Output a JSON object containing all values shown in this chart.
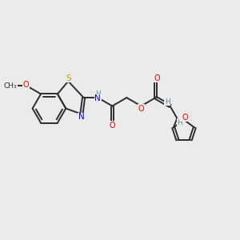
{
  "background_color": "#ebebeb",
  "bond_color": "#2d2d2d",
  "atom_colors": {
    "S": "#b8a000",
    "N": "#0000ff",
    "O": "#ff0000",
    "H": "#4a8fa0",
    "C": "#2d2d2d"
  },
  "figsize": [
    3.0,
    3.0
  ],
  "dpi": 100,
  "lw": 1.4,
  "sep": 0.055
}
